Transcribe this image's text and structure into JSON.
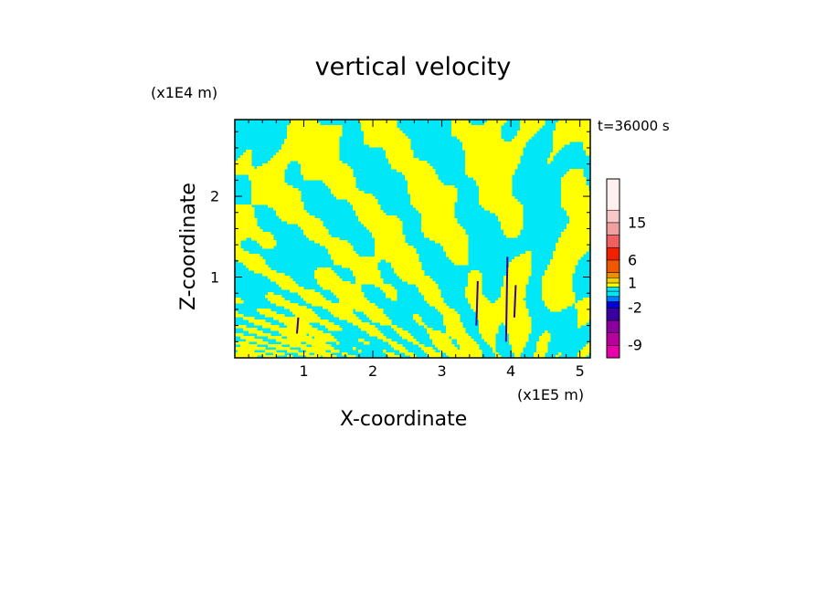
{
  "chart_data": {
    "type": "heatmap",
    "title": "vertical velocity",
    "xlabel": "X-coordinate",
    "ylabel": "Z-coordinate",
    "x_unit_label": "(x1E5 m)",
    "y_unit_label": "(x1E4 m)",
    "time_label": "t=36000 s",
    "xlim": [
      0,
      5.15
    ],
    "ylim": [
      0,
      2.95
    ],
    "x_ticks": [
      "1",
      "2",
      "3",
      "4",
      "5"
    ],
    "x_tick_values": [
      1,
      2,
      3,
      4,
      5
    ],
    "y_ticks": [
      "1",
      "2"
    ],
    "y_tick_values": [
      1,
      2
    ],
    "colorbar": {
      "tick_labels": [
        "15",
        "6",
        "1",
        "-2",
        "-9"
      ],
      "tick_values": [
        15,
        6,
        1,
        -2,
        -9
      ],
      "levels": [
        -12,
        -9,
        -6,
        -4,
        -2,
        -1,
        -0.5,
        0,
        0.5,
        1,
        2,
        4,
        6,
        9,
        12,
        15,
        18
      ],
      "colors": [
        "#e800a8",
        "#b8009c",
        "#88009e",
        "#3800a0",
        "#0000e0",
        "#0078ff",
        "#00e8f8",
        "#00e8f8",
        "#ffff00",
        "#f0d000",
        "#f09000",
        "#f05800",
        "#f02000",
        "#f06060",
        "#f0a0a0",
        "#f8c8c8",
        "#fff0f0"
      ]
    },
    "field_colors": {
      "positive": "#ffff00",
      "negative": "#00e8f8",
      "strong_negative": "#3800a0"
    }
  }
}
